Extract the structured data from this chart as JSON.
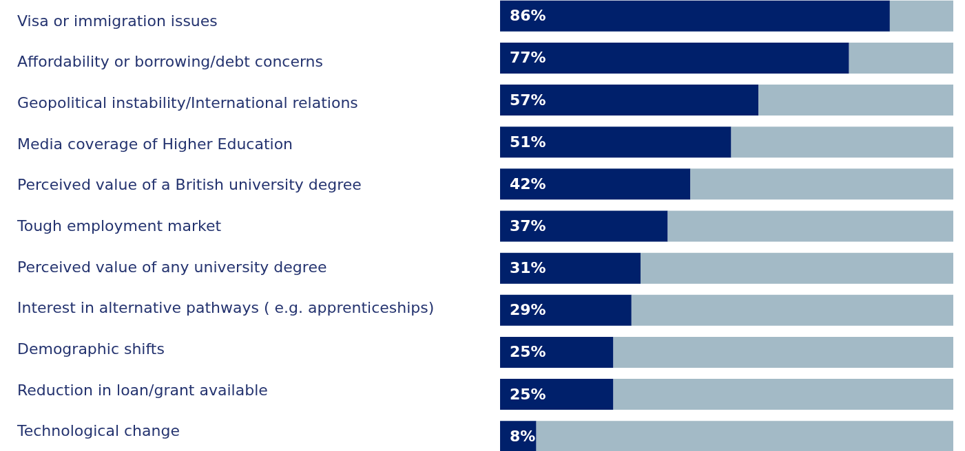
{
  "chart_data": {
    "type": "bar",
    "orientation": "horizontal",
    "stacked": true,
    "legend": false,
    "grid": false,
    "tick_labels": "y",
    "categories": [
      "Visa or immigration issues",
      "Affordability or borrowing/debt concerns",
      "Geopolitical instability/International relations",
      "Media coverage of Higher Education",
      "Perceived value of a British university degree",
      "Tough employment market",
      "Perceived value of any university degree",
      "Interest in alternative pathways ( e.g. apprenticeships)",
      "Demographic shifts",
      "Reduction in loan/grant available",
      "Technological change"
    ],
    "series": [
      {
        "color": "#00206b",
        "values": [
          86,
          77,
          57,
          51,
          42,
          37,
          31,
          29,
          25,
          25,
          8
        ],
        "value_labels": [
          "86%",
          "77%",
          "57%",
          "51%",
          "42%",
          "37%",
          "31%",
          "29%",
          "25%",
          "25%",
          "8%"
        ]
      },
      {
        "color": "#a3bac6",
        "values": [
          14,
          23,
          43,
          49,
          58,
          63,
          69,
          71,
          75,
          75,
          92
        ]
      }
    ]
  }
}
